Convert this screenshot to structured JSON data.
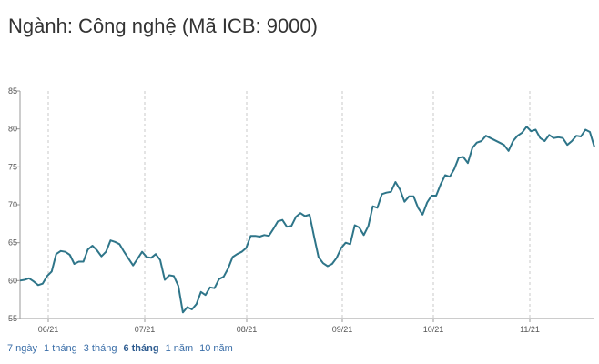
{
  "title": "Ngành: Công nghệ (Mã ICB: 9000)",
  "range_buttons": [
    {
      "label": "7 ngày",
      "active": false
    },
    {
      "label": "1 tháng",
      "active": false
    },
    {
      "label": "3 tháng",
      "active": false
    },
    {
      "label": "6 tháng",
      "active": true
    },
    {
      "label": "1 năm",
      "active": false
    },
    {
      "label": "10 năm",
      "active": false
    }
  ],
  "colors": {
    "line": "#2e7589",
    "grid": "#c8c8c8",
    "axis": "#555555"
  },
  "chart_data": {
    "type": "line",
    "title": "",
    "xlabel": "",
    "ylabel": "",
    "ylim": [
      55,
      85
    ],
    "y_ticks": [
      55,
      60,
      65,
      70,
      75,
      80,
      85
    ],
    "x_ticks": [
      "06/21",
      "07/21",
      "08/21",
      "09/21",
      "10/21",
      "11/21"
    ],
    "grid": "vertical dashed",
    "series": [
      {
        "name": "",
        "values": [
          60.0,
          60.1,
          60.3,
          59.9,
          59.4,
          59.6,
          60.6,
          61.2,
          63.5,
          63.9,
          63.8,
          63.4,
          62.2,
          62.5,
          62.5,
          64.1,
          64.6,
          64.0,
          63.2,
          63.8,
          65.3,
          65.1,
          64.8,
          63.8,
          62.9,
          62.0,
          62.9,
          63.8,
          63.1,
          63.0,
          63.5,
          62.7,
          60.1,
          60.7,
          60.6,
          59.3,
          55.8,
          56.5,
          56.2,
          56.9,
          58.5,
          58.1,
          59.1,
          59.0,
          60.2,
          60.5,
          61.6,
          63.1,
          63.5,
          63.8,
          64.3,
          65.9,
          65.9,
          65.8,
          66.0,
          65.9,
          66.8,
          67.8,
          68.0,
          67.1,
          67.2,
          68.4,
          68.9,
          68.5,
          68.7,
          65.8,
          63.1,
          62.3,
          61.9,
          62.2,
          63.0,
          64.3,
          65.0,
          64.8,
          67.3,
          67.0,
          66.0,
          67.2,
          69.8,
          69.6,
          71.4,
          71.6,
          71.7,
          73.0,
          72.0,
          70.4,
          71.1,
          71.1,
          69.6,
          68.7,
          70.3,
          71.2,
          71.2,
          72.7,
          73.9,
          73.7,
          74.7,
          76.2,
          76.3,
          75.5,
          77.5,
          78.2,
          78.4,
          79.1,
          78.8,
          78.5,
          78.2,
          77.9,
          77.1,
          78.4,
          79.1,
          79.5,
          80.3,
          79.7,
          79.9,
          78.8,
          78.4,
          79.2,
          78.8,
          78.9,
          78.8,
          77.9,
          78.4,
          79.1,
          79.0,
          79.9,
          79.6,
          77.6
        ]
      }
    ]
  }
}
